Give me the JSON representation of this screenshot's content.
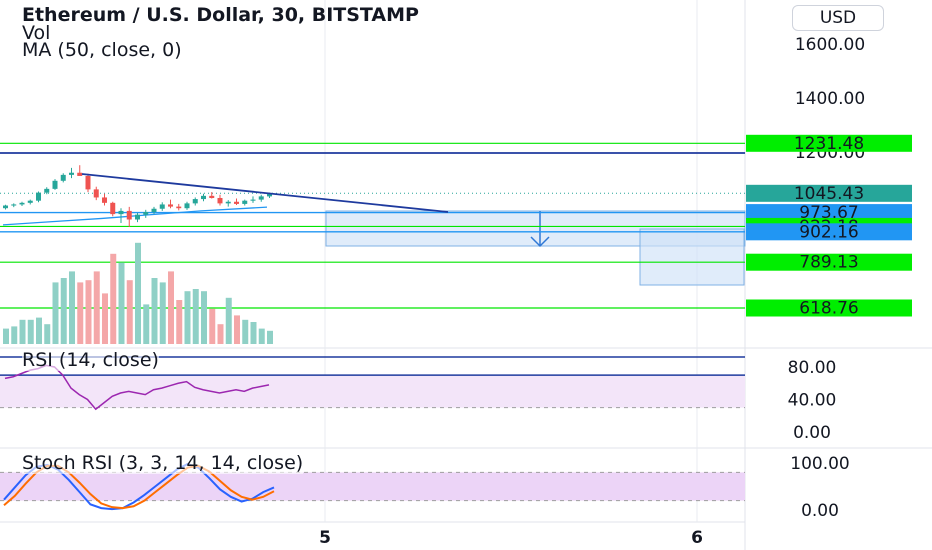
{
  "header": {
    "title": "Ethereum / U.S. Dollar, 30, BITSTAMP",
    "vol_label": "Vol",
    "ma_label": "MA (50, close, 0)",
    "currency_button": "USD"
  },
  "chart_data": [
    {
      "type": "candlestick",
      "title": "Ethereum / U.S. Dollar, 30, BITSTAMP",
      "ylim": [
        540,
        1700
      ],
      "price_axis_ticks": [
        1600.0,
        1400.0,
        1200.0
      ],
      "price_axis_ticks_text": [
        "1600.00",
        "1400.00",
        "1200.00"
      ],
      "last_price": 1045.43,
      "last_price_text": "1045.43",
      "horizontal_levels": [
        {
          "value": 1231.48,
          "text": "1231.48",
          "color": "#00e600"
        },
        {
          "value": 973.67,
          "text": "973.67",
          "color": "#2196f3"
        },
        {
          "value": 922.18,
          "text": "922.18",
          "color": "#00e600"
        },
        {
          "value": 902.16,
          "text": "902.16",
          "color": "#2196f3"
        },
        {
          "value": 789.13,
          "text": "789.13",
          "color": "#00e600"
        },
        {
          "value": 618.76,
          "text": "618.76",
          "color": "#00e600"
        }
      ],
      "candles": [
        [
          990,
          1003,
          985,
          1000
        ],
        [
          1000,
          1008,
          994,
          1004
        ],
        [
          1004,
          1014,
          998,
          1010
        ],
        [
          1010,
          1022,
          1004,
          1018
        ],
        [
          1018,
          1052,
          1012,
          1048
        ],
        [
          1048,
          1068,
          1042,
          1062
        ],
        [
          1062,
          1098,
          1058,
          1092
        ],
        [
          1092,
          1120,
          1086,
          1114
        ],
        [
          1114,
          1140,
          1102,
          1122
        ],
        [
          1122,
          1150,
          1112,
          1110
        ],
        [
          1110,
          1118,
          1050,
          1060
        ],
        [
          1060,
          1070,
          1020,
          1030
        ],
        [
          1030,
          1044,
          1000,
          1010
        ],
        [
          1010,
          1014,
          960,
          968
        ],
        [
          968,
          990,
          935,
          980
        ],
        [
          980,
          995,
          920,
          948
        ],
        [
          948,
          972,
          938,
          966
        ],
        [
          966,
          984,
          954,
          976
        ],
        [
          976,
          995,
          968,
          988
        ],
        [
          988,
          1012,
          980,
          1004
        ],
        [
          1004,
          1022,
          990,
          996
        ],
        [
          996,
          1006,
          982,
          990
        ],
        [
          990,
          1014,
          984,
          1008
        ],
        [
          1008,
          1030,
          1000,
          1024
        ],
        [
          1024,
          1044,
          1016,
          1036
        ],
        [
          1036,
          1050,
          1026,
          1028
        ],
        [
          1028,
          1040,
          1000,
          1008
        ],
        [
          1008,
          1020,
          996,
          1014
        ],
        [
          1014,
          1026,
          1002,
          1006
        ],
        [
          1006,
          1022,
          1000,
          1018
        ],
        [
          1018,
          1034,
          1010,
          1022
        ],
        [
          1022,
          1040,
          1014,
          1034
        ],
        [
          1034,
          1048,
          1028,
          1045
        ]
      ],
      "moving_average_50": [
        [
          0,
          928
        ],
        [
          6,
          940
        ],
        [
          12,
          952
        ],
        [
          18,
          966
        ],
        [
          24,
          980
        ],
        [
          32,
          994
        ]
      ],
      "volume_bars": [
        14,
        16,
        22,
        22,
        24,
        18,
        56,
        60,
        66,
        56,
        58,
        66,
        46,
        82,
        74,
        58,
        92,
        36,
        60,
        56,
        66,
        40,
        48,
        50,
        48,
        32,
        18,
        42,
        26,
        22,
        20,
        14,
        12
      ]
    },
    {
      "type": "line",
      "title": "RSI (14, close)",
      "ylim": [
        0,
        100
      ],
      "y_ticks": [
        80,
        40,
        0
      ],
      "y_ticks_text": [
        "80.00",
        "40.00",
        "0.00"
      ],
      "band": [
        30,
        70
      ],
      "values": [
        66,
        68,
        72,
        76,
        78,
        82,
        80,
        70,
        54,
        46,
        40,
        28,
        36,
        44,
        48,
        50,
        48,
        46,
        52,
        54,
        57,
        60,
        62,
        55,
        52,
        50,
        48,
        50,
        52,
        50,
        54,
        56,
        58
      ]
    },
    {
      "type": "line",
      "title": "Stoch RSI (3, 3, 14, 14, close)",
      "ylim": [
        0,
        100
      ],
      "y_ticks": [
        100,
        0
      ],
      "y_ticks_text": [
        "100.00",
        "0.00"
      ],
      "band": [
        20,
        80
      ],
      "x_labels": [
        "5",
        "6"
      ],
      "series": [
        {
          "color": "#2962ff",
          "values": [
            22,
            48,
            74,
            92,
            96,
            86,
            64,
            38,
            12,
            4,
            2,
            4,
            16,
            32,
            50,
            68,
            86,
            98,
            90,
            68,
            44,
            28,
            18,
            24,
            38,
            48
          ]
        },
        {
          "color": "#ff6d00",
          "values": [
            10,
            30,
            56,
            80,
            94,
            94,
            80,
            58,
            34,
            14,
            6,
            4,
            8,
            20,
            38,
            56,
            74,
            90,
            94,
            82,
            62,
            42,
            28,
            22,
            28,
            40
          ]
        }
      ]
    }
  ]
}
